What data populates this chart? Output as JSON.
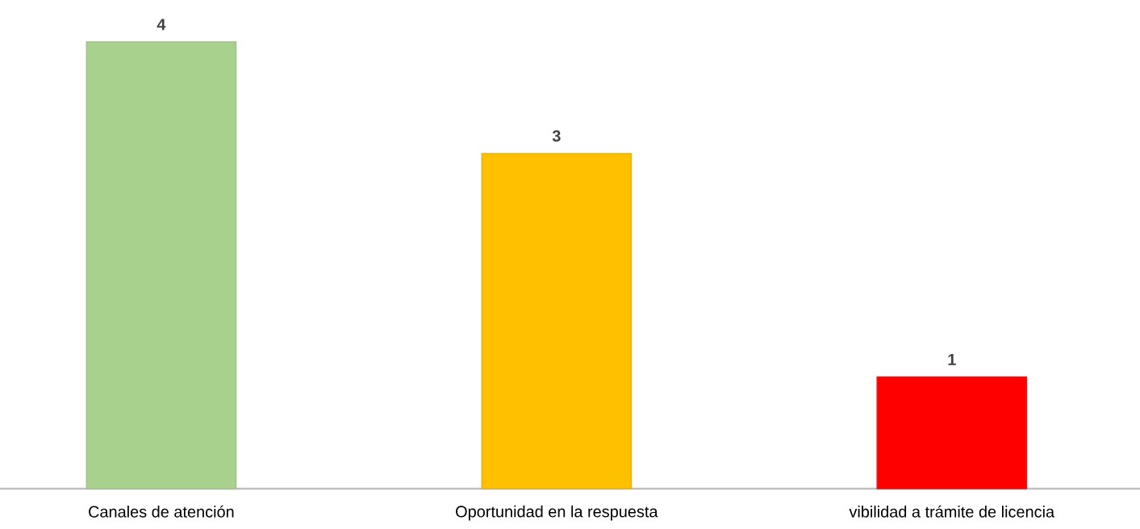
{
  "chart_data": {
    "type": "bar",
    "categories": [
      "Canales de atención",
      "Oportunidad en la respuesta",
      "vibilidad a trámite de licencia"
    ],
    "values": [
      4,
      3,
      1
    ],
    "colors": [
      "#a9d18e",
      "#ffc000",
      "#ff0000"
    ],
    "data_labels": true
  }
}
